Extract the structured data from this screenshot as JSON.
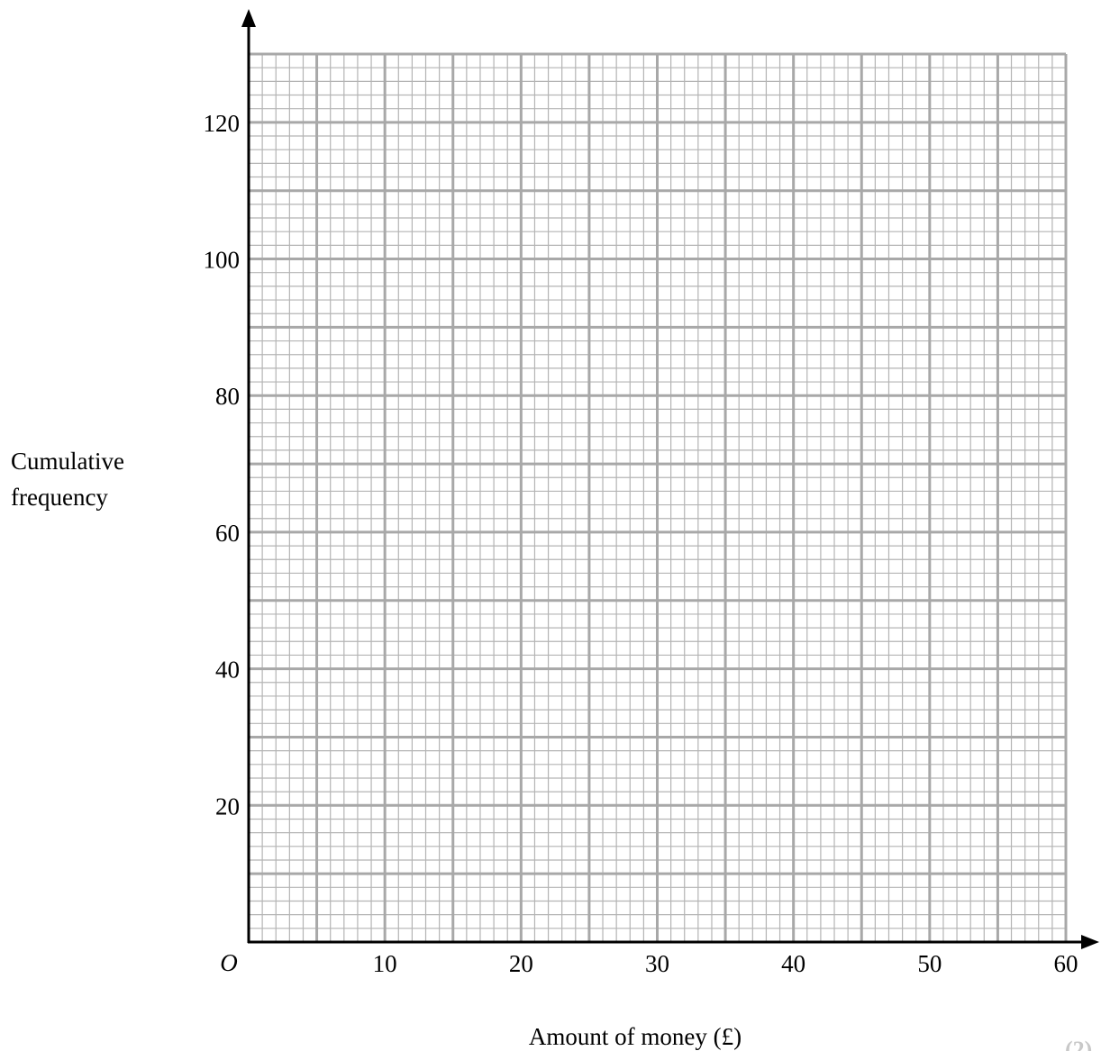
{
  "chart_data": {
    "type": "line",
    "title": "",
    "xlabel": "Amount of money (£)",
    "ylabel_lines": [
      "Cumulative",
      "frequency"
    ],
    "origin_label": "O",
    "xlim": [
      0,
      60
    ],
    "ylim": [
      0,
      130
    ],
    "x_ticks": [
      10,
      20,
      30,
      40,
      50,
      60
    ],
    "x_tick_labels": [
      "10",
      "20",
      "30",
      "40",
      "50",
      "60"
    ],
    "y_ticks": [
      20,
      40,
      60,
      80,
      100,
      120
    ],
    "y_tick_labels": [
      "20",
      "40",
      "60",
      "80",
      "100",
      "120"
    ],
    "grid": true,
    "grid_minor_x": 1,
    "grid_minor_y": 2,
    "grid_medium_x": 5,
    "grid_medium_y": 10,
    "series": []
  },
  "marks": "(2)",
  "colors": {
    "grid_minor": "#b4b4b4",
    "grid_major": "#a8a8a8",
    "axis": "#000000"
  }
}
